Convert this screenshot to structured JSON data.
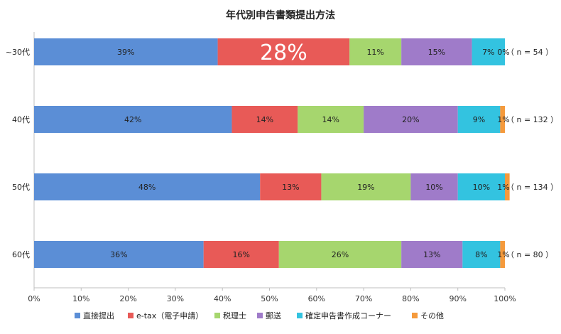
{
  "chart_data": {
    "type": "bar",
    "orientation": "horizontal",
    "stacked": "percent",
    "title": "年代別申告書類提出方法",
    "categories": [
      "~30代",
      "40代",
      "50代",
      "60代"
    ],
    "n_labels": [
      "（ n = 54 ）",
      "（ n = 132 ）",
      "（ n = 134 ）",
      "（ n = 80 ）"
    ],
    "series": [
      {
        "name": "直接提出",
        "color": "#5b8ed6",
        "values": [
          39,
          42,
          48,
          36
        ],
        "labels": [
          "39%",
          "42%",
          "48%",
          "36%"
        ]
      },
      {
        "name": "e-tax（電子申請）",
        "color": "#e85a57",
        "values": [
          28,
          14,
          13,
          16
        ],
        "labels": [
          "28%",
          "14%",
          "13%",
          "16%"
        ]
      },
      {
        "name": "税理士",
        "color": "#a6d66e",
        "values": [
          11,
          14,
          19,
          26
        ],
        "labels": [
          "11%",
          "14%",
          "19%",
          "26%"
        ]
      },
      {
        "name": "郵送",
        "color": "#9f7bc9",
        "values": [
          15,
          20,
          10,
          13
        ],
        "labels": [
          "15%",
          "20%",
          "10%",
          "13%"
        ]
      },
      {
        "name": "確定申告書作成コーナー",
        "color": "#33c3e0",
        "values": [
          7,
          9,
          10,
          8
        ],
        "labels": [
          "7%",
          "9%",
          "10%",
          "8%"
        ]
      },
      {
        "name": "その他",
        "color": "#f59a3c",
        "values": [
          0,
          1,
          1,
          1
        ],
        "labels": [
          "0%",
          "1%",
          "1%",
          "1%"
        ]
      }
    ],
    "xlim": [
      0,
      100
    ],
    "xticks": [
      "0%",
      "10%",
      "20%",
      "30%",
      "40%",
      "50%",
      "60%",
      "70%",
      "80%",
      "90%",
      "100%"
    ],
    "emphasized_label": {
      "series": 1,
      "category": 0
    },
    "legend": "bottom",
    "grid": false
  }
}
